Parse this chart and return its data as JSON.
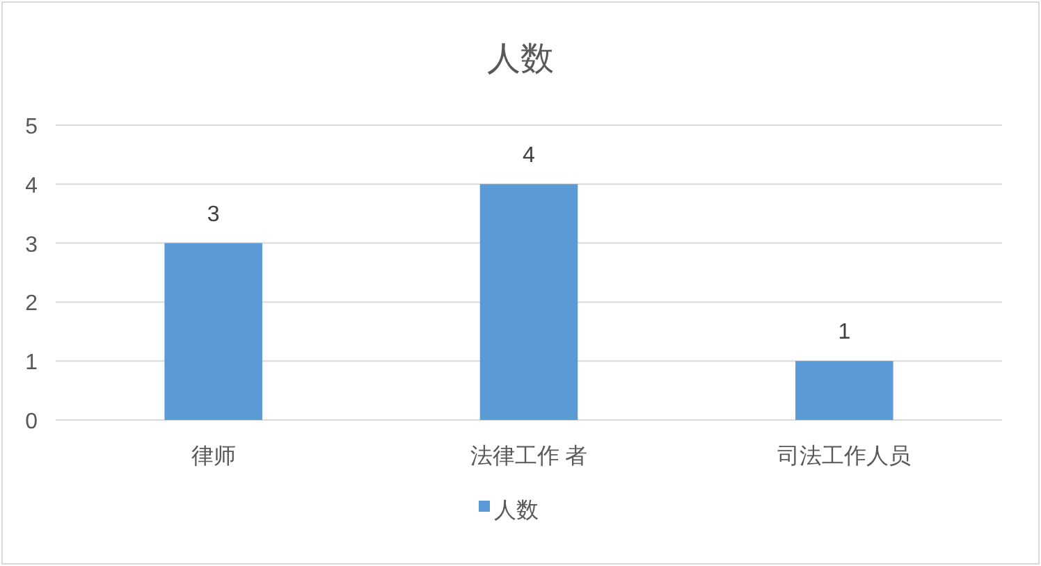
{
  "chart_data": {
    "type": "bar",
    "title": "人数",
    "categories": [
      "律师",
      "法律工作 者",
      "司法工作人员"
    ],
    "series": [
      {
        "name": "人数",
        "color": "#5b9bd5",
        "values": [
          3,
          4,
          1
        ]
      }
    ],
    "ylim": [
      0,
      5
    ],
    "yticks": [
      0,
      1,
      2,
      3,
      4,
      5
    ],
    "grid": "y",
    "legend": "bottom",
    "data_labels": true
  }
}
